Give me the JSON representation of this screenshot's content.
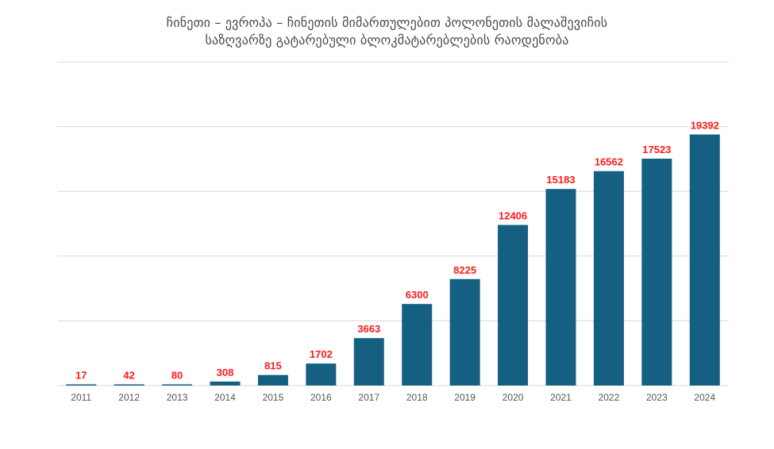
{
  "title_line1": "ჩინეთი – ევროპა – ჩინეთის მიმართულებით პოლონეთის მალაშევიჩის",
  "title_line2": "საზღვარზე გატარებული ბლოკმატარებლების რაოდენობა",
  "colors": {
    "bar": "#156082",
    "label": "#ff1a1a",
    "grid": "#d9d9d9",
    "tick": "#555555"
  },
  "chart_data": {
    "type": "bar",
    "title": "ჩინეთი – ევროპა – ჩინეთის მიმართულებით პოლონეთის მალაშევიჩის საზღვარზე გატარებული ბლოკმატარებლების რაოდენობა",
    "categories": [
      "2011",
      "2012",
      "2013",
      "2014",
      "2015",
      "2016",
      "2017",
      "2018",
      "2019",
      "2020",
      "2021",
      "2022",
      "2023",
      "2024"
    ],
    "values": [
      17,
      42,
      80,
      308,
      815,
      1702,
      3663,
      6300,
      8225,
      12406,
      15183,
      16562,
      17523,
      19392
    ],
    "ylim": [
      0,
      25000
    ],
    "grid": true,
    "data_labels": true
  }
}
